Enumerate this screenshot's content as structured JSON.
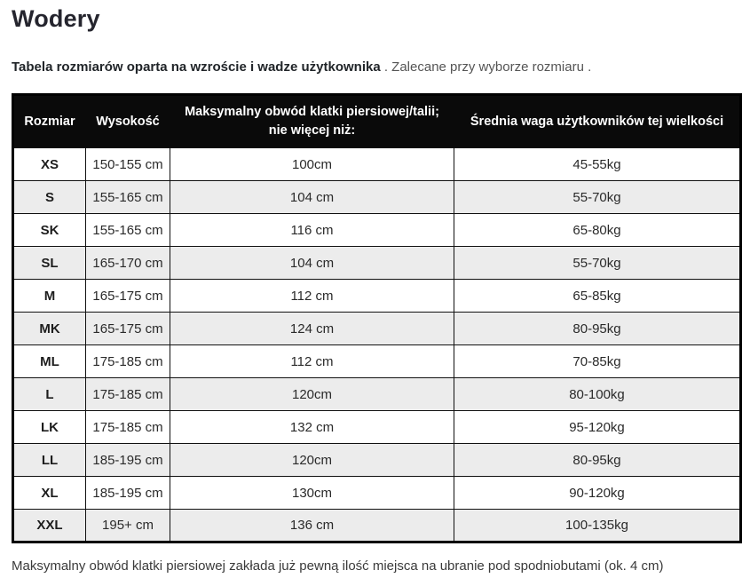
{
  "page": {
    "title": "Wodery",
    "subtitle_bold": "Tabela rozmiarów oparta na wzroście i wadze użytkownika",
    "subtitle_rest": " . Zalecane przy wyborze rozmiaru .",
    "footnote": "Maksymalny obwód klatki piersiowej zakłada już pewną ilość miejsca na ubranie pod spodniobutami (ok. 4 cm)"
  },
  "table": {
    "headers": {
      "size": "Rozmiar",
      "height": "Wysokość",
      "chest": "Maksymalny obwód klatki piersiowej/talii; nie więcej niż:",
      "weight": "Średnia waga użytkowników tej wielkości"
    },
    "rows": [
      [
        "XS",
        "150-155 cm",
        "100cm",
        "45-55kg"
      ],
      [
        "S",
        "155-165 cm",
        "104 cm",
        "55-70kg"
      ],
      [
        "SK",
        "155-165 cm",
        "116 cm",
        "65-80kg"
      ],
      [
        "SL",
        "165-170 cm",
        "104 cm",
        "55-70kg"
      ],
      [
        "M",
        "165-175 cm",
        "112 cm",
        "65-85kg"
      ],
      [
        "MK",
        "165-175 cm",
        "124 cm",
        "80-95kg"
      ],
      [
        "ML",
        "175-185 cm",
        "112 cm",
        "70-85kg"
      ],
      [
        "L",
        "175-185 cm",
        "120cm",
        "80-100kg"
      ],
      [
        "LK",
        "175-185 cm",
        "132 cm",
        "95-120kg"
      ],
      [
        "LL",
        "185-195 cm",
        "120cm",
        "80-95kg"
      ],
      [
        "XL",
        "185-195 cm",
        "130cm",
        "90-120kg"
      ],
      [
        "XXL",
        "195+ cm",
        "136 cm",
        "100-135kg"
      ]
    ]
  },
  "colors": {
    "header_bg": "#0a0a0a",
    "header_fg": "#ffffff",
    "row_alt_bg": "#ececec",
    "border": "#111111"
  }
}
